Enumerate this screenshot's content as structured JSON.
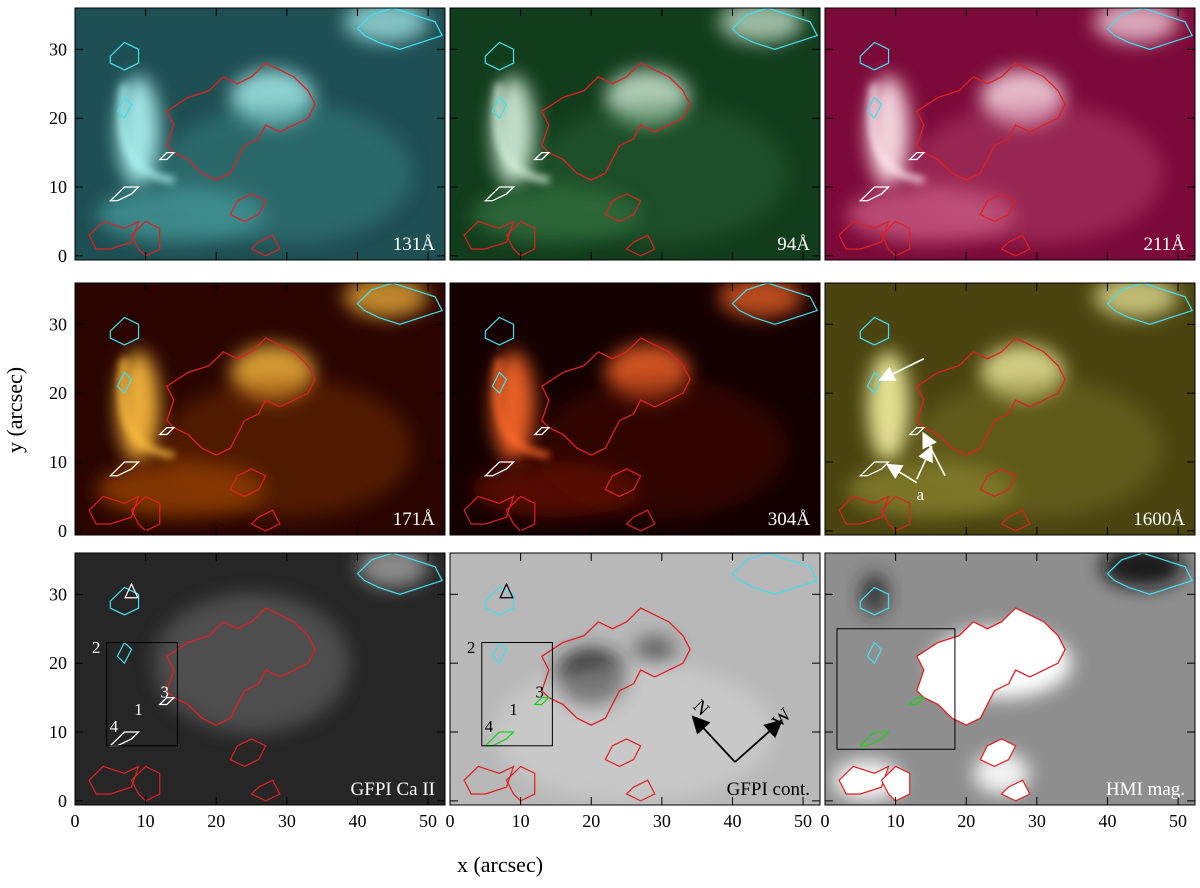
{
  "figure": {
    "xlabel": "x  (arcsec)",
    "ylabel": "y  (arcsec)",
    "xlim": [
      0,
      52.4
    ],
    "ylim": [
      -0.6,
      36
    ],
    "xticks": [
      0,
      10,
      20,
      30,
      40,
      50
    ],
    "yticks": [
      0,
      10,
      20,
      30
    ],
    "panels": [
      {
        "label": "131Å"
      },
      {
        "label": "94Å"
      },
      {
        "label": "211Å"
      },
      {
        "label": "171Å"
      },
      {
        "label": "304Å"
      },
      {
        "label": "1600Å"
      },
      {
        "label": "GFPI Ca II"
      },
      {
        "label": "GFPI cont."
      },
      {
        "label": "HMI mag."
      }
    ],
    "annotations": {
      "region_labels": [
        "1",
        "2",
        "3",
        "4"
      ],
      "arrow_label": "a",
      "compass": [
        "N",
        "W"
      ]
    }
  }
}
